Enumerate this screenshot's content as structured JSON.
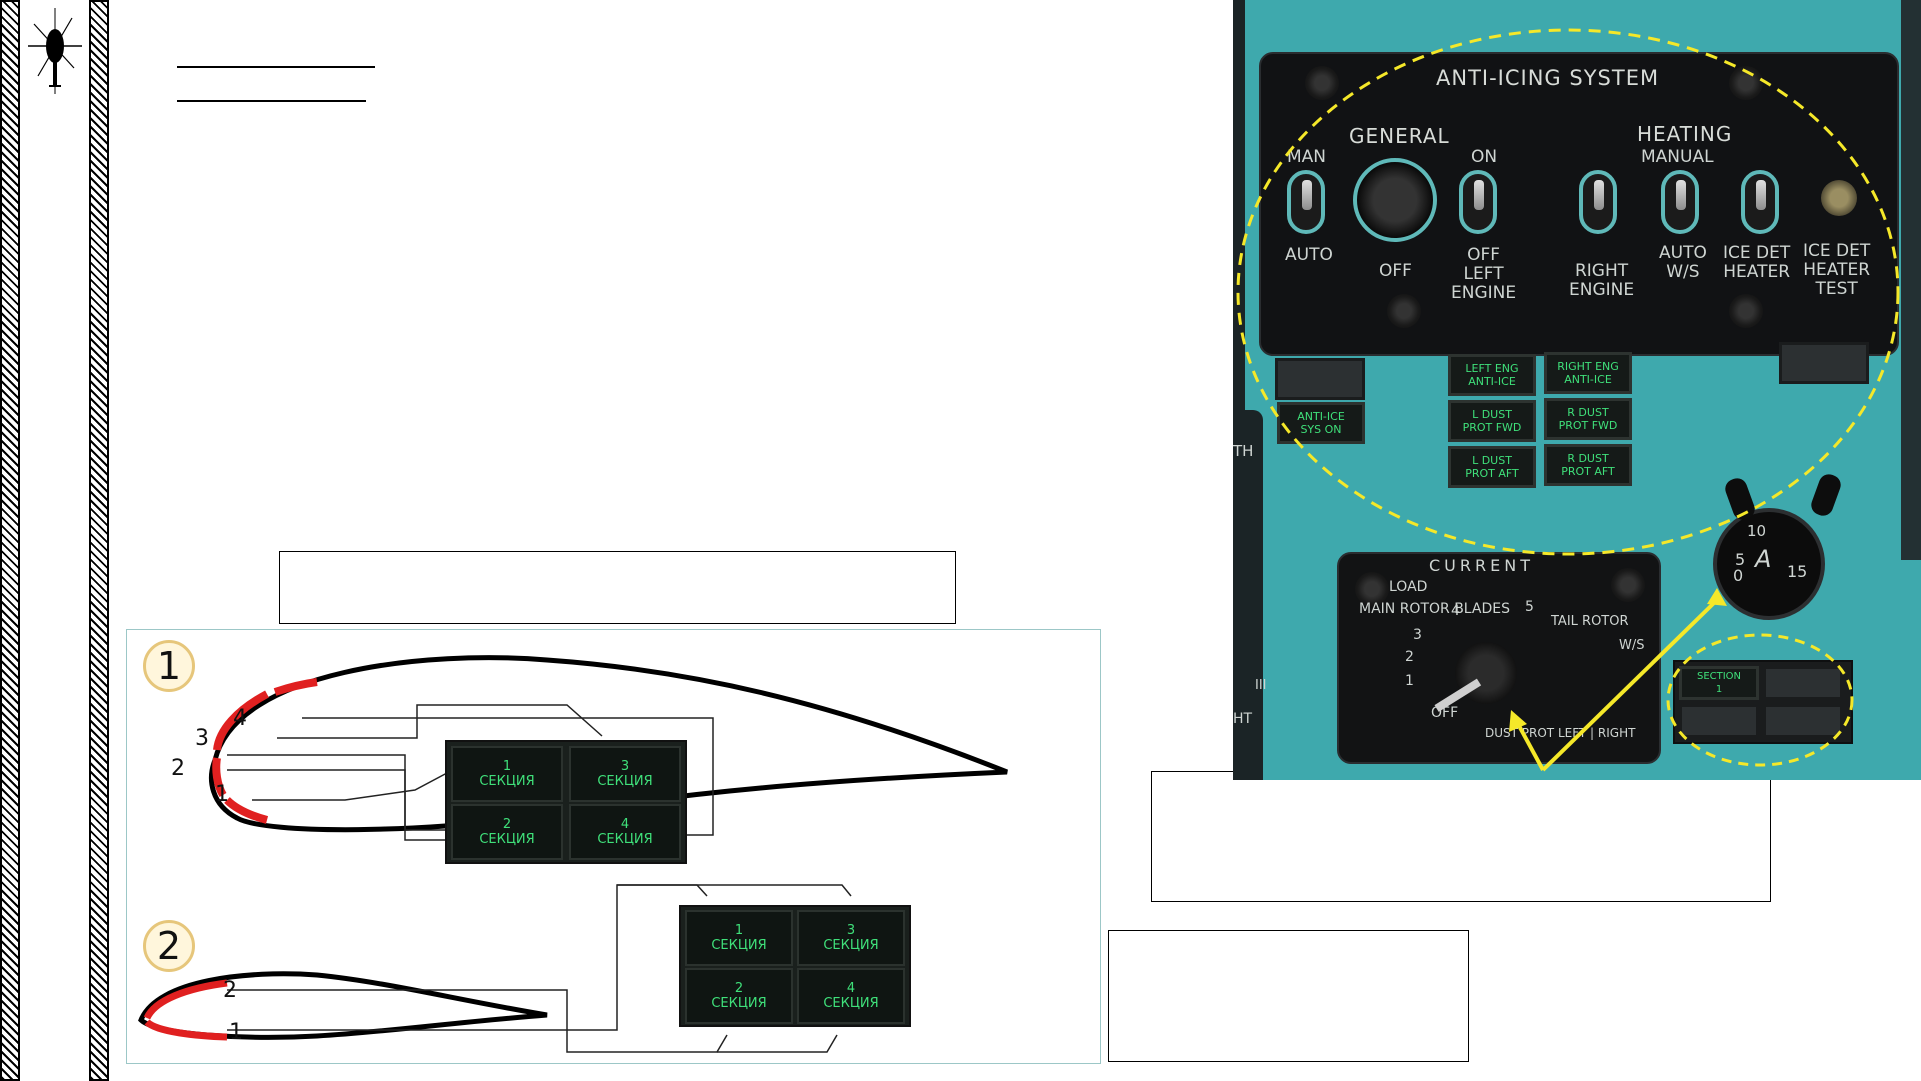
{
  "diagram": {
    "panel_title": "ANTI-ICING SYSTEM",
    "general_label": "GENERAL",
    "heating_label": "HEATING",
    "manual_label": "MANUAL",
    "man_label": "MAN",
    "auto_label": "AUTO",
    "on_label": "ON",
    "off_label": "OFF",
    "off_left_engine_label": "OFF\nLEFT\nENGINE",
    "right_engine_label": "RIGHT\nENGINE",
    "auto_ws_label": "AUTO\nW/S",
    "ice_det_heater_label": "ICE DET\nHEATER",
    "ice_det_heater_test_label": "ICE DET\nHEATER\nTEST",
    "lamps": {
      "left_eng_anti_ice": "LEFT ENG\nANTI-ICE",
      "right_eng_anti_ice": "RIGHT ENG\nANTI-ICE",
      "anti_ice_sys_on": "ANTI-ICE\nSYS ON",
      "l_dust_prot_fwd": "L DUST\nPROT FWD",
      "r_dust_prot_fwd": "R DUST\nPROT FWD",
      "l_dust_prot_aft": "L DUST\nPROT AFT",
      "r_dust_prot_aft": "R DUST\nPROT AFT",
      "section_1": "SECTION\n1"
    },
    "selector": {
      "current": "CURRENT",
      "load": "LOAD",
      "main_rotor_blades": "MAIN ROTOR BLADES",
      "tail_rotor": "TAIL ROTOR",
      "ws": "W/S",
      "dust_prot": "DUST PROT LEFT | RIGHT",
      "off": "OFF",
      "pos_1": "1",
      "pos_2": "2",
      "pos_3": "3",
      "pos_4": "4",
      "pos_5": "5"
    },
    "ammeter": {
      "letter": "A",
      "t0": "0",
      "t5": "5",
      "t10": "10",
      "t15": "15"
    },
    "fragment_th": "TH",
    "fragment_iii": "III",
    "fragment_ht": "HT",
    "sections": {
      "s1": "1\nСЕКЦИЯ",
      "s2": "2\nСЕКЦИЯ",
      "s3": "3\nСЕКЦИЯ",
      "s4": "4\nСЕКЦИЯ"
    },
    "fig1_number": "1",
    "fig2_number": "2",
    "fig1_zones": [
      "1",
      "2",
      "3",
      "4"
    ],
    "fig2_zones": [
      "1",
      "2"
    ]
  }
}
